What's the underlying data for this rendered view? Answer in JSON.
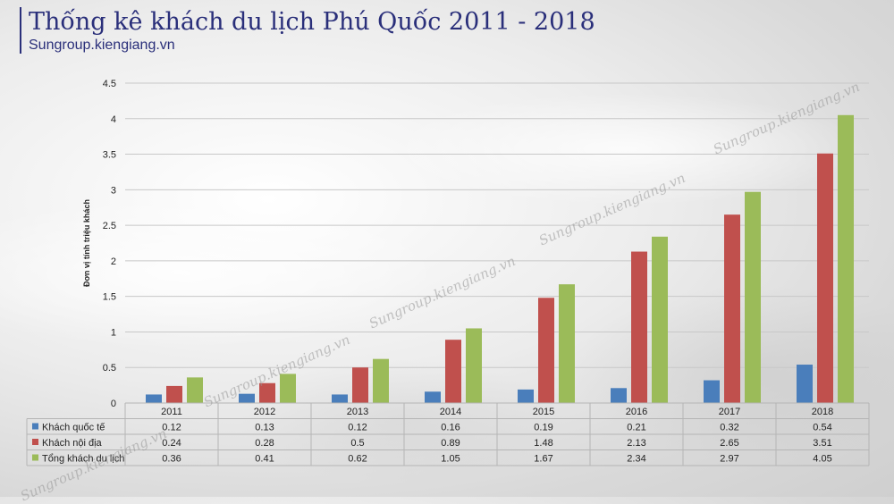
{
  "header": {
    "title": "Thống kê khách du lịch Phú Quốc 2011 - 2018",
    "source": "Sungroup.kiengiang.vn"
  },
  "watermark_text": "Sungroup.kiengiang.vn",
  "colors": {
    "title": "#2a2f7a",
    "series": [
      "#4a7ebb",
      "#c0504d",
      "#9bbb59"
    ]
  },
  "chart_data": {
    "type": "bar",
    "ylabel": "Đơn vị tính triệu khách",
    "ylim": [
      0,
      4.5
    ],
    "yticks": [
      "0",
      "0.5",
      "1",
      "1.5",
      "2",
      "2.5",
      "3",
      "3.5",
      "4",
      "4.5"
    ],
    "grid": true,
    "legend": "data-table",
    "categories": [
      "2011",
      "2012",
      "2013",
      "2014",
      "2015",
      "2016",
      "2017",
      "2018"
    ],
    "series": [
      {
        "name": "Khách quốc tế",
        "values": [
          0.12,
          0.13,
          0.12,
          0.16,
          0.19,
          0.21,
          0.32,
          0.54
        ],
        "labels": [
          "0.12",
          "0.13",
          "0.12",
          "0.16",
          "0.19",
          "0.21",
          "0.32",
          "0.54"
        ]
      },
      {
        "name": "Khách nội địa",
        "values": [
          0.24,
          0.28,
          0.5,
          0.89,
          1.48,
          2.13,
          2.65,
          3.51
        ],
        "labels": [
          "0.24",
          "0.28",
          "0.5",
          "0.89",
          "1.48",
          "2.13",
          "2.65",
          "3.51"
        ]
      },
      {
        "name": "Tổng khách du lịch",
        "values": [
          0.36,
          0.41,
          0.62,
          1.05,
          1.67,
          2.34,
          2.97,
          4.05
        ],
        "labels": [
          "0.36",
          "0.41",
          "0.62",
          "1.05",
          "1.67",
          "2.34",
          "2.97",
          "4.05"
        ]
      }
    ]
  }
}
